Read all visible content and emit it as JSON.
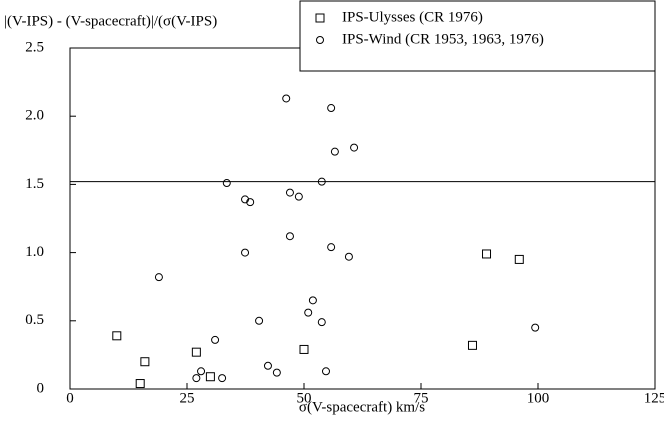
{
  "chart_data": {
    "type": "scatter",
    "ylabel": "|(V-IPS) - (V-spacecraft)|/(σ(V-IPS)",
    "xlabel": "σ(V-spacecraft) km/s",
    "xlim": [
      0,
      125
    ],
    "xticks": [
      0,
      25,
      50,
      75,
      100,
      125
    ],
    "ylim": [
      0,
      2.5
    ],
    "yticks": [
      0,
      0.5,
      {
        "value": 1,
        "label": "1.0"
      },
      1.5,
      {
        "value": 2,
        "label": "2.0"
      },
      2.5
    ],
    "reference_line": 1.52,
    "legend": "top-right",
    "series": [
      {
        "name": "IPS-Ulysses (CR 1976)",
        "marker": "square",
        "color": "#000000",
        "x": [
          10,
          16,
          15,
          27,
          30,
          50,
          86,
          89,
          96
        ],
        "values": [
          0.39,
          0.2,
          0.04,
          0.27,
          0.09,
          0.29,
          0.32,
          0.99,
          0.95
        ]
      },
      {
        "name": "IPS-Wind (CR 1953, 1963, 1976)",
        "marker": "circle",
        "color": "#000000",
        "x": [
          19,
          27,
          28,
          31,
          32.5,
          33.5,
          37.4,
          38.5,
          37.4,
          40.4,
          42.3,
          44.2,
          46.2,
          47,
          47,
          48.9,
          50.9,
          51.9,
          53.8,
          53.8,
          54.7,
          55.8,
          55.8,
          56.6,
          60.7,
          59.6,
          99.4
        ],
        "values": [
          0.82,
          0.08,
          0.13,
          0.36,
          0.08,
          1.51,
          1.39,
          1.37,
          1.0,
          0.5,
          0.17,
          0.12,
          2.13,
          1.44,
          1.12,
          1.41,
          0.56,
          0.65,
          1.52,
          0.49,
          0.13,
          2.06,
          1.04,
          1.74,
          1.77,
          0.97,
          0.45
        ]
      }
    ]
  }
}
